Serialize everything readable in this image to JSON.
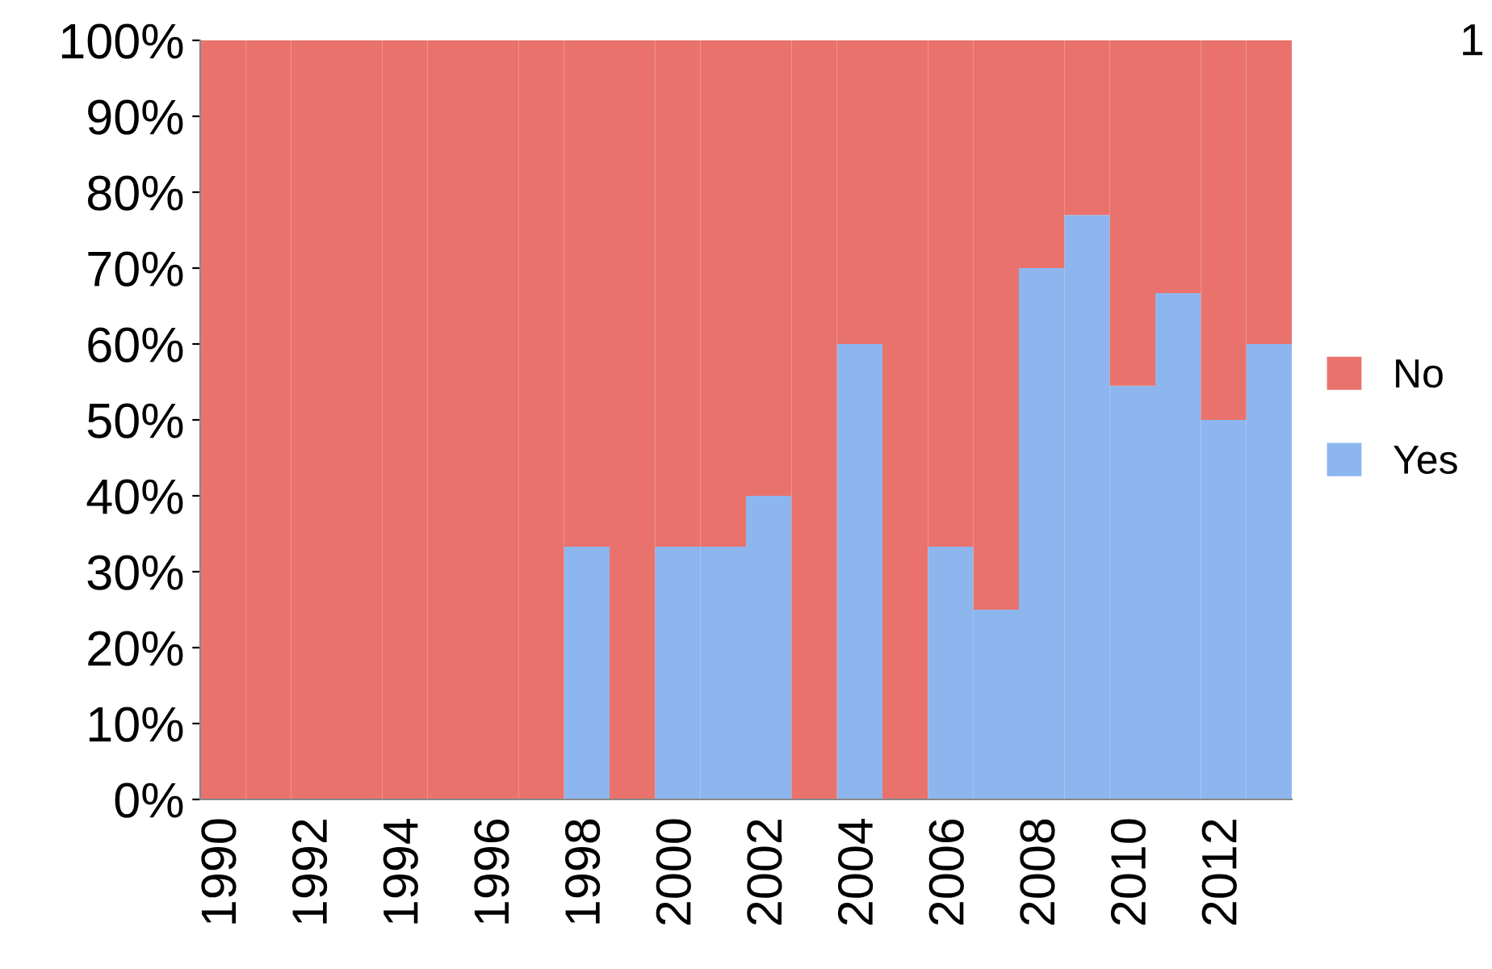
{
  "chart_data": {
    "type": "bar",
    "stacked": true,
    "categories": [
      "1990",
      null,
      "1992",
      null,
      "1994",
      null,
      "1996",
      null,
      "1998",
      null,
      "2000",
      null,
      "2002",
      null,
      "2004",
      null,
      "2006",
      null,
      "2008",
      null,
      "2010",
      null,
      "2012",
      null
    ],
    "series": [
      {
        "name": "Yes",
        "color": "#8db6ef",
        "values": [
          0,
          0,
          0,
          0,
          0,
          0,
          0,
          0,
          33.3,
          0,
          33.3,
          33.3,
          40,
          0,
          60,
          0,
          33.3,
          25,
          70,
          77,
          54.5,
          66.7,
          50,
          60
        ]
      },
      {
        "name": "No",
        "color": "#e9736c",
        "values": [
          100,
          100,
          100,
          100,
          100,
          100,
          100,
          100,
          66.7,
          100,
          66.7,
          66.7,
          60,
          100,
          40,
          100,
          66.7,
          75,
          30,
          23,
          45.5,
          33.3,
          50,
          40
        ]
      }
    ],
    "ylim": [
      0,
      100
    ],
    "yticks": [
      {
        "value": 0,
        "label": "0%"
      },
      {
        "value": 10,
        "label": "10%"
      },
      {
        "value": 20,
        "label": "20%"
      },
      {
        "value": 30,
        "label": "30%"
      },
      {
        "value": 40,
        "label": "40%"
      },
      {
        "value": 50,
        "label": "50%"
      },
      {
        "value": 60,
        "label": "60%"
      },
      {
        "value": 70,
        "label": "70%"
      },
      {
        "value": 80,
        "label": "80%"
      },
      {
        "value": 90,
        "label": "90%"
      },
      {
        "value": 100,
        "label": "100%"
      }
    ],
    "grid": false,
    "legend": "right",
    "annotations": [
      "1"
    ]
  }
}
